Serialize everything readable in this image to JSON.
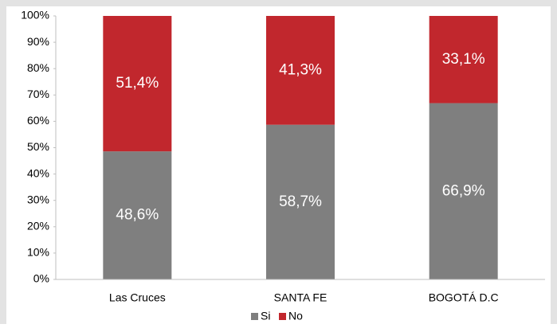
{
  "chart_data": {
    "type": "stacked_bar",
    "categories": [
      "Las Cruces",
      "SANTA FE",
      "BOGOTÁ D.C"
    ],
    "series": [
      {
        "name": "Si",
        "color": "#7f7f7f",
        "values": [
          48.6,
          58.7,
          66.9
        ],
        "value_labels": [
          "48,6%",
          "58,7%",
          "66,9%"
        ]
      },
      {
        "name": "No",
        "color": "#c1272d",
        "values": [
          51.4,
          41.3,
          33.1
        ],
        "value_labels": [
          "51,4%",
          "41,3%",
          "33,1%"
        ]
      }
    ],
    "ylim": [
      0,
      100
    ],
    "yticks": [
      {
        "value": 0,
        "label": "0%"
      },
      {
        "value": 10,
        "label": "10%"
      },
      {
        "value": 20,
        "label": "20%"
      },
      {
        "value": 30,
        "label": "30%"
      },
      {
        "value": 40,
        "label": "40%"
      },
      {
        "value": 50,
        "label": "50%"
      },
      {
        "value": 60,
        "label": "60%"
      },
      {
        "value": 70,
        "label": "70%"
      },
      {
        "value": 80,
        "label": "80%"
      },
      {
        "value": 90,
        "label": "90%"
      },
      {
        "value": 100,
        "label": "100%"
      }
    ],
    "legend": "bottom"
  }
}
